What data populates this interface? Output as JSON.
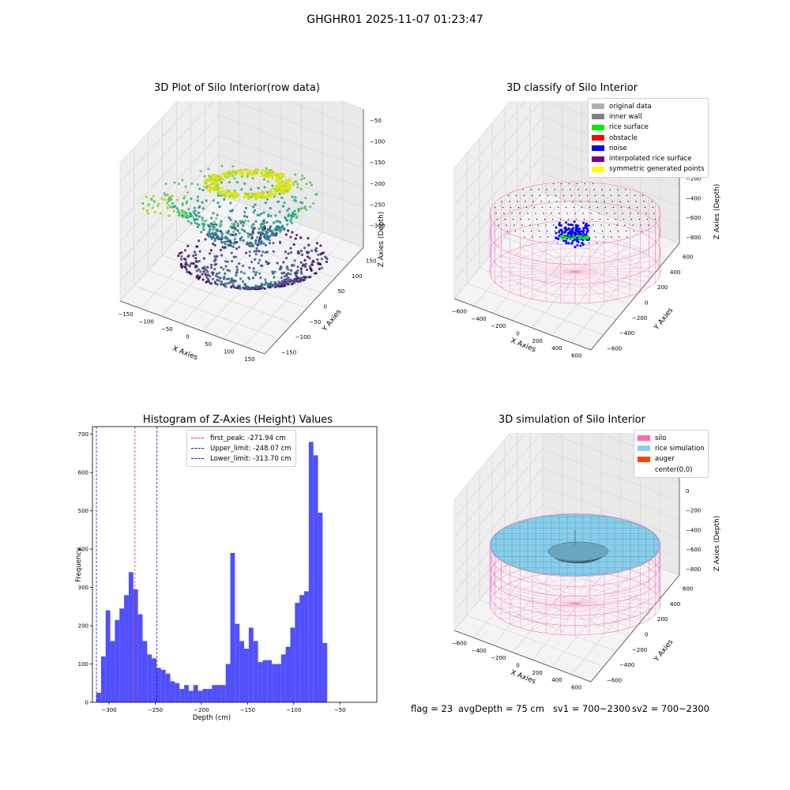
{
  "suptitle": "GHGHR01 2025-11-07 01:23:47",
  "colors": {
    "histogram_bar": "#5050ff",
    "first_peak": "#ff2020",
    "limits": "#1010c0",
    "silo": "#ff69b4",
    "rice": "#87ceeb",
    "auger": "#ff4500"
  },
  "panels": {
    "raw": {
      "title": "3D Plot of Silo Interior(row data)",
      "xlabel": "X Axies",
      "ylabel": "Y Axies",
      "zlabel": "Z Axies (Depth)",
      "x_ticks": [
        "−150",
        "−100",
        "−50",
        "0",
        "50",
        "100",
        "150"
      ],
      "y_ticks": [
        "−150",
        "−100",
        "−50",
        "0",
        "50",
        "100",
        "150"
      ],
      "z_ticks": [
        "−50",
        "−100",
        "−150",
        "−200",
        "−250",
        "−300"
      ],
      "colormap": "viridis"
    },
    "classify": {
      "title": "3D classify of Silo Interior",
      "xlabel": "X Axies",
      "ylabel": "Y Axies",
      "zlabel": "Z Axies (Depth)",
      "x_ticks": [
        "−600",
        "−400",
        "−200",
        "0",
        "200",
        "400",
        "600"
      ],
      "y_ticks": [
        "−600",
        "−400",
        "−200",
        "0",
        "200",
        "400",
        "600"
      ],
      "z_ticks": [
        "400",
        "200",
        "0",
        "−200",
        "−400",
        "−600",
        "−800"
      ],
      "legend": [
        {
          "label": "original data",
          "color": "#b0b0b0"
        },
        {
          "label": "inner wall",
          "color": "#808080"
        },
        {
          "label": "rice surface",
          "color": "#00ee00"
        },
        {
          "label": "obstacle",
          "color": "#ff0000"
        },
        {
          "label": "noise",
          "color": "#0000ff"
        },
        {
          "label": "interpolated rice surface",
          "color": "#800080"
        },
        {
          "label": "symmetric generated points",
          "color": "#ffff00"
        }
      ]
    },
    "simulation": {
      "title": "3D simulation of Silo Interior",
      "xlabel": "X Axies",
      "ylabel": "Y Axies",
      "zlabel": "Z Axies (Depth)",
      "x_ticks": [
        "−600",
        "−400",
        "−200",
        "0",
        "200",
        "400",
        "600"
      ],
      "y_ticks": [
        "−600",
        "−400",
        "−200",
        "0",
        "200",
        "400",
        "600"
      ],
      "z_ticks": [
        "400",
        "200",
        "0",
        "−200",
        "−400",
        "−600",
        "−800"
      ],
      "legend": [
        {
          "label": "silo",
          "color": "#ff69b4"
        },
        {
          "label": "rice simulation",
          "color": "#87ceeb"
        },
        {
          "label": "auger",
          "color": "#ff4500"
        },
        {
          "label": "center(0,0)",
          "color": "#ffffff"
        }
      ]
    }
  },
  "footer": {
    "flag": "flag = 23",
    "avg": "avgDepth = 75 cm",
    "sv1": "sv1 = 700~2300",
    "sv2": "sv2 = 700~2300"
  },
  "chart_data": {
    "type": "bar",
    "title": "Histogram of Z-Axies (Height) Values",
    "xlabel": "Depth (cm)",
    "ylabel": "Frequency",
    "xlim": [
      -318,
      -10
    ],
    "ylim": [
      0,
      720
    ],
    "x_ticks": [
      -300,
      -250,
      -200,
      -150,
      -100,
      -50
    ],
    "y_ticks": [
      0,
      100,
      200,
      300,
      400,
      500,
      600,
      700
    ],
    "bin_start": -313.7,
    "bin_width": 5,
    "values": [
      25,
      120,
      240,
      160,
      215,
      245,
      280,
      340,
      295,
      230,
      160,
      125,
      115,
      90,
      85,
      75,
      55,
      50,
      35,
      45,
      30,
      45,
      30,
      35,
      35,
      45,
      45,
      45,
      100,
      390,
      205,
      160,
      140,
      195,
      160,
      105,
      110,
      110,
      100,
      100,
      125,
      145,
      195,
      260,
      280,
      290,
      680,
      645,
      495,
      155
    ],
    "lines": [
      {
        "name": "first_peak: -271.94 cm",
        "x": -271.94,
        "color": "#ff2020"
      },
      {
        "name": "Upper_limit: -248.07 cm",
        "x": -248.07,
        "color": "#1010c0"
      },
      {
        "name": "Lower_limit: -313.70 cm",
        "x": -313.7,
        "color": "#1010c0"
      }
    ]
  }
}
